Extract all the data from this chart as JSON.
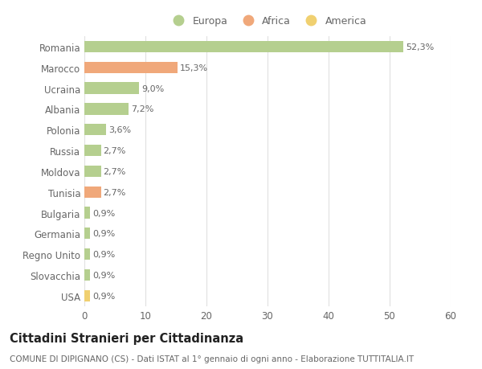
{
  "categories": [
    "Romania",
    "Marocco",
    "Ucraina",
    "Albania",
    "Polonia",
    "Russia",
    "Moldova",
    "Tunisia",
    "Bulgaria",
    "Germania",
    "Regno Unito",
    "Slovacchia",
    "USA"
  ],
  "values": [
    52.3,
    15.3,
    9.0,
    7.2,
    3.6,
    2.7,
    2.7,
    2.7,
    0.9,
    0.9,
    0.9,
    0.9,
    0.9
  ],
  "labels": [
    "52,3%",
    "15,3%",
    "9,0%",
    "7,2%",
    "3,6%",
    "2,7%",
    "2,7%",
    "2,7%",
    "0,9%",
    "0,9%",
    "0,9%",
    "0,9%",
    "0,9%"
  ],
  "continents": [
    "Europa",
    "Africa",
    "Europa",
    "Europa",
    "Europa",
    "Europa",
    "Europa",
    "Africa",
    "Europa",
    "Europa",
    "Europa",
    "Europa",
    "America"
  ],
  "continent_colors": {
    "Europa": "#b5cf8f",
    "Africa": "#f0a87a",
    "America": "#f0d070"
  },
  "xlim": [
    0,
    60
  ],
  "xticks": [
    0,
    10,
    20,
    30,
    40,
    50,
    60
  ],
  "background_color": "#ffffff",
  "grid_color": "#e0e0e0",
  "title": "Cittadini Stranieri per Cittadinanza",
  "subtitle": "COMUNE DI DIPIGNANO (CS) - Dati ISTAT al 1° gennaio di ogni anno - Elaborazione TUTTITALIA.IT",
  "bar_height": 0.55,
  "label_fontsize": 8,
  "tick_fontsize": 8.5,
  "title_fontsize": 10.5,
  "subtitle_fontsize": 7.5,
  "legend_order": [
    "Europa",
    "Africa",
    "America"
  ]
}
